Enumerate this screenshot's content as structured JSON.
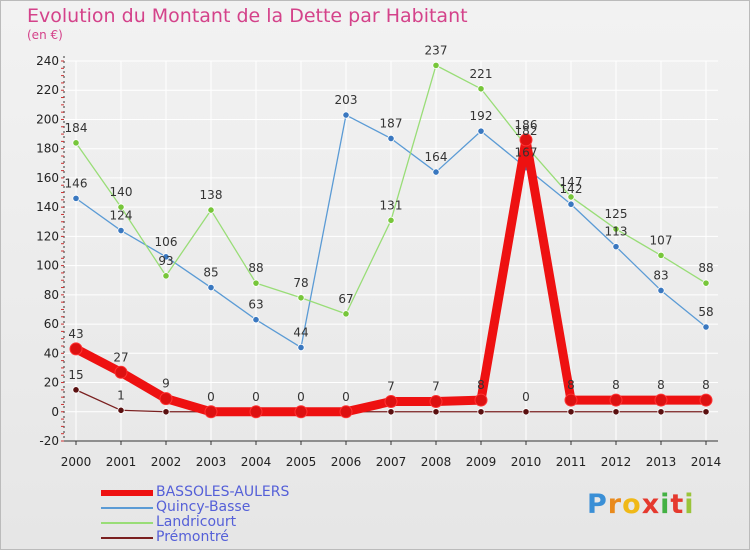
{
  "colors": {
    "title": "#d4428a",
    "legend_text": "#5560d8",
    "axis": "#333333",
    "tick_minor": "#cc3333",
    "gridline": "#ffffff"
  },
  "logo": {
    "letters": [
      "P",
      "r",
      "o",
      "x",
      "i",
      "t",
      "i"
    ],
    "colors": [
      "#3a8fd6",
      "#e98a1c",
      "#f0b917",
      "#e5392e",
      "#43b143",
      "#e5392e",
      "#9ac43a"
    ]
  },
  "chart_data": {
    "type": "line",
    "title": "Evolution du Montant de la Dette par Habitant",
    "subtitle": "(en €)",
    "xlabel": "",
    "ylabel": "",
    "ylim": [
      -20,
      240
    ],
    "yticks": [
      -20,
      0,
      20,
      40,
      60,
      80,
      100,
      120,
      140,
      160,
      180,
      200,
      220,
      240
    ],
    "grid": true,
    "legend_position": "bottom-left",
    "categories": [
      "2000",
      "2001",
      "2002",
      "2003",
      "2004",
      "2005",
      "2006",
      "2007",
      "2008",
      "2009",
      "2010",
      "2011",
      "2012",
      "2013",
      "2014"
    ],
    "series": [
      {
        "name": "BASSOLES-AULERS",
        "color": "#ee1111",
        "marker_color": "#dd1111",
        "thick": true,
        "values": [
          43,
          27,
          9,
          0,
          0,
          0,
          0,
          7,
          7,
          8,
          186,
          8,
          8,
          8,
          8
        ],
        "labels": [
          "43",
          "27",
          "9",
          "0",
          "0",
          "0",
          "0",
          "7",
          "7",
          "8",
          "186",
          "8",
          "8",
          "8",
          "8"
        ]
      },
      {
        "name": "Quincy-Basse",
        "color": "#5b9bd5",
        "marker_color": "#3a78c0",
        "values": [
          146,
          124,
          106,
          85,
          63,
          44,
          203,
          187,
          164,
          192,
          167,
          142,
          113,
          83,
          58
        ],
        "labels": [
          "146",
          "124",
          "106",
          "85",
          "63",
          "44",
          "203",
          "187",
          "164",
          "192",
          "167",
          "142",
          "113",
          "83",
          "58"
        ]
      },
      {
        "name": "Landricourt",
        "color": "#99dd77",
        "marker_color": "#77c63a",
        "values": [
          184,
          140,
          93,
          138,
          88,
          78,
          67,
          131,
          237,
          221,
          182,
          147,
          125,
          107,
          88
        ],
        "labels": [
          "184",
          "140",
          "93",
          "138",
          "88",
          "78",
          "67",
          "131",
          "237",
          "221",
          "182",
          "147",
          "125",
          "107",
          "88"
        ]
      },
      {
        "name": "Prémontré",
        "color": "#7a2020",
        "marker_color": "#5a1010",
        "values": [
          15,
          1,
          0,
          0,
          0,
          0,
          0,
          0,
          0,
          0,
          0,
          0,
          0,
          0,
          0
        ],
        "labels": [
          "15",
          "1",
          "",
          "",
          "",
          "",
          "",
          "",
          "",
          "",
          "0",
          "",
          "",
          "",
          ""
        ]
      }
    ]
  }
}
